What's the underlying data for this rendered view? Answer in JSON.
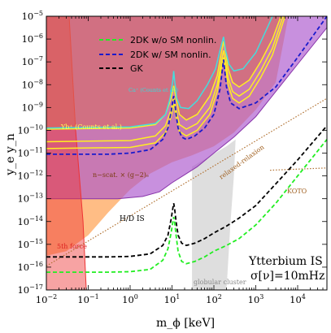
{
  "chart_data": {
    "type": "line",
    "xlabel": "m_ϕ [keV]",
    "ylabel": "y_e y_n",
    "x_scale": "log",
    "y_scale": "log",
    "xlim": [
      0.01,
      50000
    ],
    "ylim": [
      1e-17,
      1e-05
    ],
    "x_ticks": [
      {
        "v": 0.01,
        "b": "10",
        "e": "−2"
      },
      {
        "v": 0.1,
        "b": "10",
        "e": "−1"
      },
      {
        "v": 1,
        "b": "10",
        "e": "0"
      },
      {
        "v": 10,
        "b": "10",
        "e": "1"
      },
      {
        "v": 100,
        "b": "10",
        "e": "2"
      },
      {
        "v": 1000,
        "b": "10",
        "e": "3"
      },
      {
        "v": 10000,
        "b": "10",
        "e": "4"
      }
    ],
    "y_ticks": [
      {
        "v": -17,
        "b": "10",
        "e": "−17"
      },
      {
        "v": -16,
        "b": "10",
        "e": "−16"
      },
      {
        "v": -15,
        "b": "10",
        "e": "−15"
      },
      {
        "v": -14,
        "b": "10",
        "e": "−14"
      },
      {
        "v": -13,
        "b": "10",
        "e": "−13"
      },
      {
        "v": -12,
        "b": "10",
        "e": "−12"
      },
      {
        "v": -11,
        "b": "10",
        "e": "−11"
      },
      {
        "v": -10,
        "b": "10",
        "e": "−10"
      },
      {
        "v": -9,
        "b": "10",
        "e": "−9"
      },
      {
        "v": -8,
        "b": "10",
        "e": "−8"
      },
      {
        "v": -7,
        "b": "10",
        "e": "−7"
      },
      {
        "v": -6,
        "b": "10",
        "e": "−6"
      },
      {
        "v": -5,
        "b": "10",
        "e": "−5"
      }
    ],
    "legend": {
      "placement": "top-center",
      "entries": [
        {
          "label": "2DK w/o SM nonlin.",
          "color": "#22ee22",
          "dash": "dashed"
        },
        {
          "label": "2DK w/ SM nonlin.",
          "color": "#1a1acc",
          "dash": "dashed"
        },
        {
          "label": "GK",
          "color": "#000000",
          "dash": "dashed"
        }
      ]
    },
    "series": [
      {
        "name": "2DK w/o SM nonlin.",
        "color": "#22ee22",
        "dash": "dashed",
        "points": [
          [
            0.01,
            -16.22
          ],
          [
            0.3,
            -16.22
          ],
          [
            1,
            -16.2
          ],
          [
            3,
            -16.1
          ],
          [
            6,
            -15.7
          ],
          [
            8,
            -15.2
          ],
          [
            9.5,
            -14.5
          ],
          [
            10.5,
            -14.0
          ],
          [
            11,
            -13.8
          ],
          [
            11.5,
            -14.0
          ],
          [
            12.5,
            -14.6
          ],
          [
            14,
            -15.3
          ],
          [
            17,
            -15.75
          ],
          [
            22,
            -15.85
          ],
          [
            35,
            -15.75
          ],
          [
            60,
            -15.55
          ],
          [
            100,
            -15.3
          ],
          [
            200,
            -15.05
          ],
          [
            400,
            -14.75
          ],
          [
            1000,
            -14.15
          ],
          [
            3000,
            -13.2
          ],
          [
            10000,
            -12.0
          ],
          [
            50000,
            -10.4
          ]
        ]
      },
      {
        "name": "2DK w/ SM nonlin.",
        "color": "#1a1acc",
        "dash": "dashed",
        "points": [
          [
            0.01,
            -11.05
          ],
          [
            0.3,
            -11.05
          ],
          [
            1,
            -11.0
          ],
          [
            3,
            -10.85
          ],
          [
            6,
            -10.4
          ],
          [
            8,
            -9.9
          ],
          [
            9.5,
            -9.2
          ],
          [
            10.5,
            -8.7
          ],
          [
            11,
            -8.5
          ],
          [
            11.5,
            -8.7
          ],
          [
            12.5,
            -9.3
          ],
          [
            14,
            -9.9
          ],
          [
            17,
            -10.3
          ],
          [
            22,
            -10.4
          ],
          [
            35,
            -10.25
          ],
          [
            60,
            -9.9
          ],
          [
            100,
            -9.3
          ],
          [
            140,
            -8.2
          ],
          [
            160,
            -7.3
          ],
          [
            170,
            -6.9
          ],
          [
            180,
            -7.3
          ],
          [
            200,
            -8.1
          ],
          [
            250,
            -8.8
          ],
          [
            400,
            -9.05
          ],
          [
            1000,
            -8.8
          ],
          [
            3000,
            -8.1
          ],
          [
            10000,
            -6.8
          ],
          [
            50000,
            -5.0
          ]
        ]
      },
      {
        "name": "GK",
        "color": "#000000",
        "dash": "dashed",
        "points": [
          [
            0.01,
            -15.55
          ],
          [
            0.3,
            -15.55
          ],
          [
            1,
            -15.53
          ],
          [
            3,
            -15.42
          ],
          [
            6,
            -15.05
          ],
          [
            8,
            -14.6
          ],
          [
            9.5,
            -13.9
          ],
          [
            10.5,
            -13.4
          ],
          [
            11,
            -13.2
          ],
          [
            11.5,
            -13.4
          ],
          [
            12.5,
            -14.0
          ],
          [
            14,
            -14.6
          ],
          [
            17,
            -14.95
          ],
          [
            22,
            -15.05
          ],
          [
            35,
            -14.95
          ],
          [
            60,
            -14.75
          ],
          [
            100,
            -14.5
          ],
          [
            200,
            -14.2
          ],
          [
            400,
            -13.85
          ],
          [
            1000,
            -13.3
          ],
          [
            3000,
            -12.35
          ],
          [
            10000,
            -11.3
          ],
          [
            50000,
            -9.8
          ]
        ]
      }
    ],
    "bounds": [
      {
        "name": "Yb+ (Counts et al.)",
        "color": "#ffee22",
        "points": [
          [
            0.01,
            -9.95
          ],
          [
            1,
            -9.9
          ],
          [
            4,
            -9.75
          ],
          [
            7,
            -9.3
          ],
          [
            9.5,
            -8.6
          ],
          [
            11,
            -8.05
          ],
          [
            12.5,
            -8.6
          ],
          [
            15,
            -9.3
          ],
          [
            22,
            -9.55
          ],
          [
            40,
            -9.3
          ],
          [
            80,
            -8.5
          ],
          [
            120,
            -7.6
          ],
          [
            150,
            -6.6
          ],
          [
            170,
            -6.1
          ],
          [
            190,
            -6.6
          ],
          [
            220,
            -7.3
          ],
          [
            280,
            -7.9
          ],
          [
            400,
            -8.1
          ],
          [
            700,
            -7.8
          ],
          [
            1300,
            -7.0
          ],
          [
            2500,
            -6.0
          ],
          [
            4000,
            -5.0
          ]
        ]
      },
      {
        "name": "Yb+ (Counts et al.)",
        "color": "#ffee22",
        "points": [
          [
            0.01,
            -10.5
          ],
          [
            1,
            -10.45
          ],
          [
            4,
            -10.25
          ],
          [
            7,
            -9.8
          ],
          [
            9.5,
            -9.1
          ],
          [
            11,
            -8.55
          ],
          [
            12.5,
            -9.1
          ],
          [
            15,
            -9.75
          ],
          [
            22,
            -9.95
          ],
          [
            40,
            -9.7
          ],
          [
            80,
            -9.0
          ],
          [
            120,
            -8.0
          ],
          [
            150,
            -7.0
          ],
          [
            170,
            -6.5
          ],
          [
            190,
            -7.0
          ],
          [
            220,
            -7.7
          ],
          [
            280,
            -8.3
          ],
          [
            400,
            -8.5
          ],
          [
            700,
            -8.2
          ],
          [
            1300,
            -7.4
          ],
          [
            2500,
            -6.4
          ],
          [
            4500,
            -5.0
          ]
        ]
      },
      {
        "name": "Yb+ (Counts et al.)",
        "color": "#ffee22",
        "points": [
          [
            0.01,
            -10.8
          ],
          [
            1,
            -10.75
          ],
          [
            4,
            -10.55
          ],
          [
            7,
            -10.1
          ],
          [
            9.5,
            -9.4
          ],
          [
            11,
            -8.85
          ],
          [
            12.5,
            -9.4
          ],
          [
            15,
            -10.05
          ],
          [
            22,
            -10.25
          ],
          [
            40,
            -10.0
          ],
          [
            80,
            -9.3
          ],
          [
            120,
            -8.3
          ],
          [
            150,
            -7.3
          ],
          [
            170,
            -6.8
          ],
          [
            190,
            -7.3
          ],
          [
            220,
            -8.0
          ],
          [
            280,
            -8.6
          ],
          [
            400,
            -8.8
          ],
          [
            700,
            -8.5
          ],
          [
            1300,
            -7.7
          ],
          [
            2500,
            -6.7
          ],
          [
            5000,
            -5.0
          ]
        ]
      },
      {
        "name": "Ca+ (Counts et al.)",
        "color": "#44dddd",
        "points": [
          [
            0.01,
            -9.9
          ],
          [
            1,
            -9.85
          ],
          [
            4,
            -9.7
          ],
          [
            7,
            -9.3
          ],
          [
            9,
            -8.6
          ],
          [
            10.5,
            -7.8
          ],
          [
            11,
            -7.4
          ],
          [
            11.5,
            -7.8
          ],
          [
            13,
            -8.6
          ],
          [
            16,
            -9.0
          ],
          [
            25,
            -9.05
          ],
          [
            40,
            -8.7
          ],
          [
            70,
            -8.0
          ],
          [
            110,
            -7.3
          ],
          [
            140,
            -6.5
          ],
          [
            170,
            -5.9
          ],
          [
            190,
            -6.5
          ],
          [
            230,
            -7.1
          ],
          [
            300,
            -7.4
          ],
          [
            500,
            -7.3
          ],
          [
            1000,
            -6.6
          ],
          [
            2000,
            -5.4
          ],
          [
            2500,
            -5.0
          ]
        ]
      }
    ],
    "regions": [
      {
        "name": "5th force",
        "color": "#ee4444"
      },
      {
        "name": "globular cluster",
        "color": "#c8c8c8"
      },
      {
        "name": "H/D IS",
        "color": "#aa55cc"
      },
      {
        "name": "n−scat. × (g−2)_e",
        "color": "#ffaa55"
      }
    ],
    "reference_lines": [
      {
        "name": "relaxed-relaxion",
        "color": "#b07030",
        "points": [
          [
            0.01,
            -15.95
          ],
          [
            50000,
            -8.6
          ]
        ]
      },
      {
        "name": "KOTO",
        "color": "#b07030",
        "points": [
          [
            2200,
            -11.75
          ],
          [
            50000,
            -11.65
          ]
        ]
      }
    ],
    "annotations": [
      {
        "id": "yb",
        "text": "Yb⁺ (Counts et al.)"
      },
      {
        "id": "ca",
        "text": "Ca⁺ (Counts et al.)"
      },
      {
        "id": "nscat",
        "text": "n−scat. × (g−2)ₑ"
      },
      {
        "id": "hd",
        "text": "H/D IS"
      },
      {
        "id": "relax",
        "text": "relaxed-relaxion"
      },
      {
        "id": "koto",
        "text": "KOTO"
      },
      {
        "id": "force",
        "text": "5th force"
      },
      {
        "id": "gc",
        "text": "globular cluster"
      },
      {
        "id": "ytt",
        "text": "Ytterbium IS"
      },
      {
        "id": "sigma",
        "text": "σ[ν]=10mHz"
      }
    ]
  }
}
